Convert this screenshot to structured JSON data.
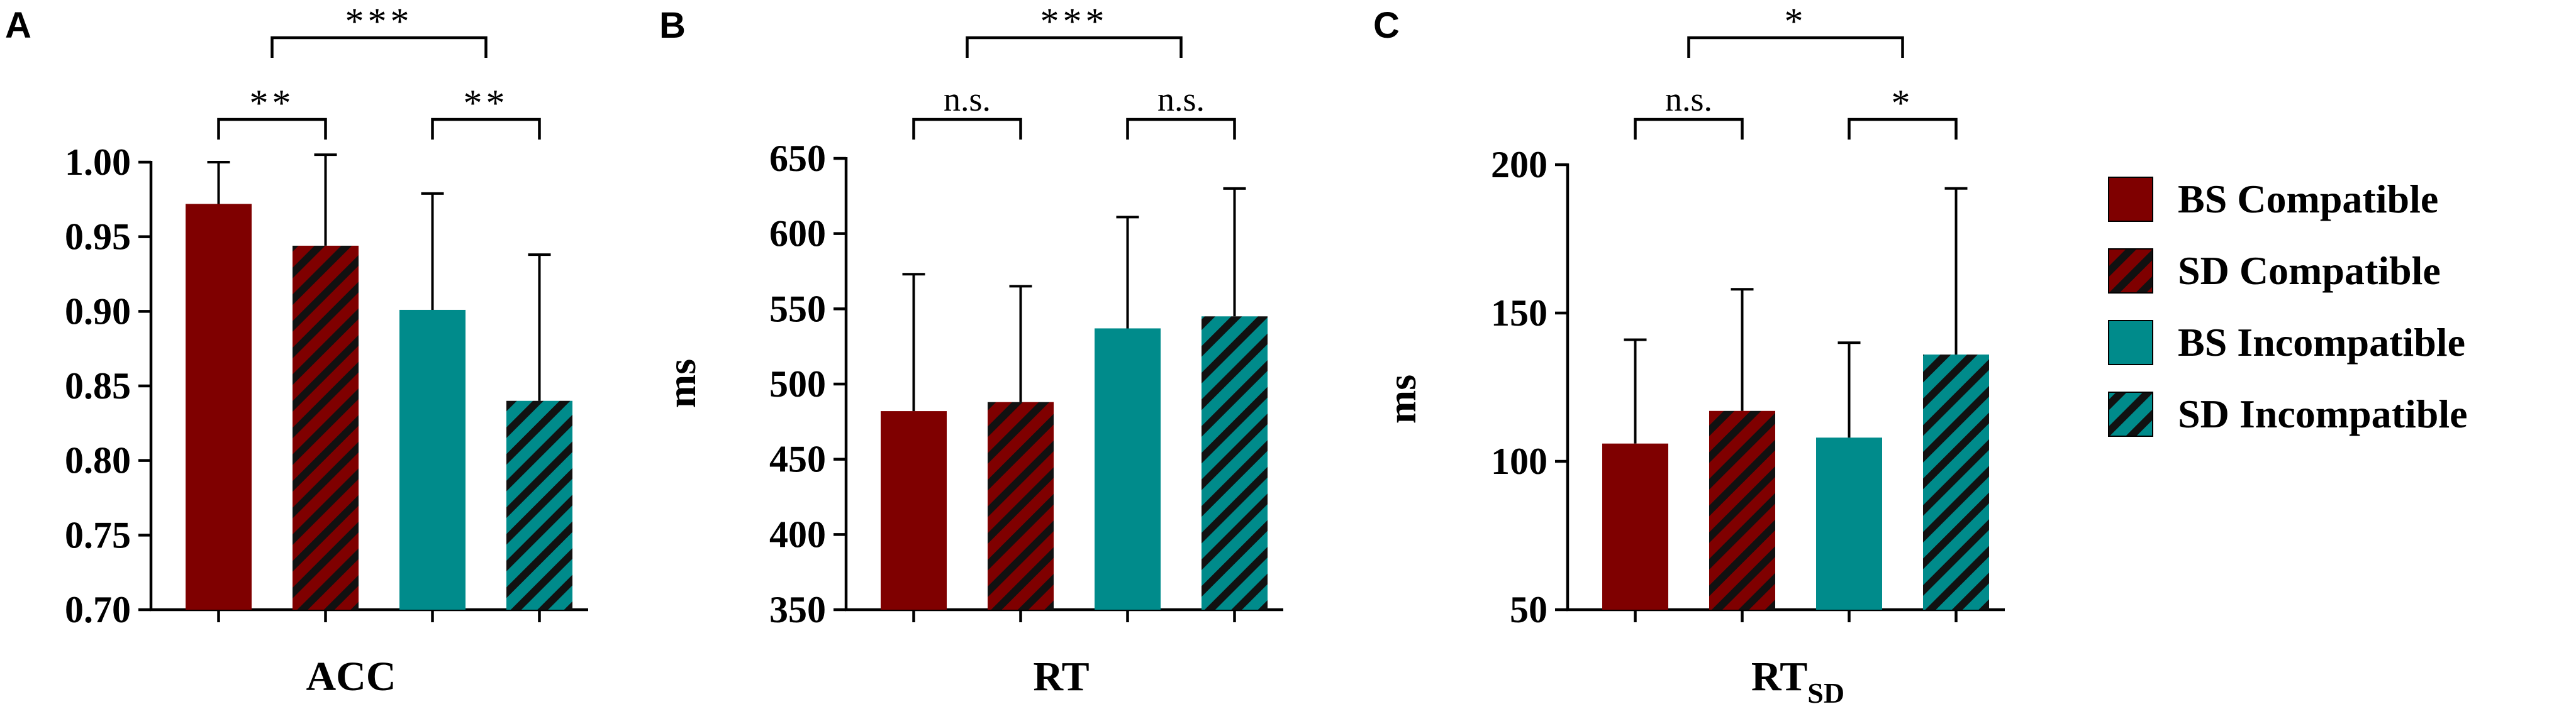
{
  "legend": [
    {
      "label": "BS Compatible",
      "color": "#7f0000",
      "hatch": false
    },
    {
      "label": "SD Compatible",
      "color": "#7f0000",
      "hatch": true
    },
    {
      "label": "BS Incompatible",
      "color": "#008b8b",
      "hatch": false
    },
    {
      "label": "SD Incompatible",
      "color": "#008b8b",
      "hatch": true
    }
  ],
  "chart_data": [
    {
      "panel": "A",
      "type": "bar",
      "xlabel": "ACC",
      "xlabel_sub": "",
      "ylabel": "",
      "ylim": [
        0.7,
        1.0
      ],
      "yticks": [
        0.7,
        0.75,
        0.8,
        0.85,
        0.9,
        0.95,
        1.0
      ],
      "ytick_labels": [
        "0.70",
        "0.75",
        "0.80",
        "0.85",
        "0.90",
        "0.95",
        "1.00"
      ],
      "categories": [
        "BS Compatible",
        "SD Compatible",
        "BS Incompatible",
        "SD Incompatible"
      ],
      "values": [
        0.972,
        0.944,
        0.901,
        0.84
      ],
      "errors": [
        0.028,
        0.061,
        0.078,
        0.098
      ],
      "comparisons": [
        {
          "from": 0,
          "to": 1,
          "label": "**",
          "level": 1
        },
        {
          "from": 2,
          "to": 3,
          "label": "**",
          "level": 1
        },
        {
          "from": 0.5,
          "to": 2.5,
          "label": "***",
          "level": 2
        }
      ]
    },
    {
      "panel": "B",
      "type": "bar",
      "xlabel": "RT",
      "xlabel_sub": "",
      "ylabel": "ms",
      "ylim": [
        350,
        650
      ],
      "yticks": [
        350,
        400,
        450,
        500,
        550,
        600,
        650
      ],
      "ytick_labels": [
        "350",
        "400",
        "450",
        "500",
        "550",
        "600",
        "650"
      ],
      "categories": [
        "BS Compatible",
        "SD Compatible",
        "BS Incompatible",
        "SD Incompatible"
      ],
      "values": [
        482,
        488,
        537,
        545
      ],
      "errors": [
        91,
        77,
        74,
        85
      ],
      "comparisons": [
        {
          "from": 0,
          "to": 1,
          "label": "n.s.",
          "level": 1
        },
        {
          "from": 2,
          "to": 3,
          "label": "n.s.",
          "level": 1
        },
        {
          "from": 0.5,
          "to": 2.5,
          "label": "***",
          "level": 2
        }
      ]
    },
    {
      "panel": "C",
      "type": "bar",
      "xlabel": "RT",
      "xlabel_sub": "SD",
      "ylabel": "ms",
      "ylim": [
        50,
        200
      ],
      "yticks": [
        50,
        100,
        150,
        200
      ],
      "ytick_labels": [
        "50",
        "100",
        "150",
        "200"
      ],
      "categories": [
        "BS Compatible",
        "SD Compatible",
        "BS Incompatible",
        "SD Incompatible"
      ],
      "values": [
        106,
        117,
        108,
        136
      ],
      "errors": [
        35,
        41,
        32,
        56
      ],
      "comparisons": [
        {
          "from": 0,
          "to": 1,
          "label": "n.s.",
          "level": 1
        },
        {
          "from": 2,
          "to": 3,
          "label": "*",
          "level": 1
        },
        {
          "from": 0.5,
          "to": 2.5,
          "label": "*",
          "level": 2
        }
      ]
    }
  ]
}
